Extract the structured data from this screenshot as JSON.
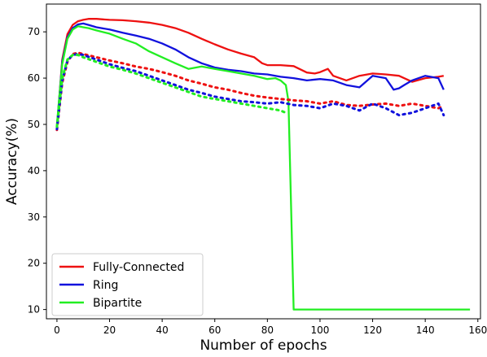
{
  "chart_data": {
    "type": "line",
    "title": "",
    "xlabel": "Number of epochs",
    "ylabel": "Accuracy(%)",
    "xlim": [
      -4,
      161
    ],
    "ylim": [
      8,
      76
    ],
    "xticks": [
      0,
      20,
      40,
      60,
      80,
      100,
      120,
      140,
      160
    ],
    "yticks": [
      10,
      20,
      30,
      40,
      50,
      60,
      70
    ],
    "grid": false,
    "legend": "lower-left",
    "series": [
      {
        "name": "Fully-Connected",
        "color": "#ee1111",
        "style": "solid",
        "x": [
          0,
          2,
          4,
          6,
          8,
          10,
          12,
          15,
          20,
          25,
          30,
          35,
          40,
          45,
          50,
          55,
          60,
          65,
          70,
          75,
          78,
          80,
          85,
          90,
          95,
          98,
          100,
          103,
          105,
          110,
          115,
          120,
          125,
          130,
          135,
          140,
          145,
          147
        ],
        "y": [
          49,
          64,
          69.5,
          71.5,
          72.3,
          72.6,
          72.8,
          72.8,
          72.6,
          72.5,
          72.3,
          72,
          71.5,
          70.8,
          69.8,
          68.5,
          67.3,
          66.2,
          65.3,
          64.5,
          63.2,
          62.8,
          62.8,
          62.6,
          61.2,
          61,
          61.3,
          62,
          60.5,
          59.5,
          60.5,
          61,
          60.8,
          60.5,
          59.2,
          60,
          60.3,
          60.5
        ]
      },
      {
        "name": "Ring",
        "color": "#1111dd",
        "style": "solid",
        "x": [
          0,
          2,
          4,
          6,
          8,
          10,
          12,
          15,
          20,
          25,
          30,
          35,
          40,
          45,
          50,
          55,
          60,
          65,
          70,
          75,
          80,
          85,
          90,
          95,
          100,
          105,
          110,
          115,
          120,
          125,
          128,
          130,
          132,
          135,
          140,
          145,
          147
        ],
        "y": [
          49.5,
          63.5,
          68.8,
          70.8,
          71.6,
          71.8,
          71.5,
          71,
          70.5,
          69.8,
          69.2,
          68.5,
          67.5,
          66.2,
          64.5,
          63.2,
          62.3,
          61.8,
          61.5,
          61,
          60.8,
          60.3,
          60,
          59.5,
          59.8,
          59.5,
          58.5,
          58,
          60.5,
          60,
          57.5,
          57.8,
          58.5,
          59.5,
          60.5,
          60,
          57.5
        ]
      },
      {
        "name": "Bipartite",
        "color": "#22ee22",
        "style": "solid",
        "x": [
          0,
          2,
          4,
          6,
          8,
          10,
          12,
          15,
          20,
          25,
          30,
          35,
          40,
          45,
          50,
          55,
          60,
          65,
          70,
          75,
          80,
          83,
          85,
          87,
          88,
          90,
          157
        ],
        "y": [
          50,
          63,
          68.5,
          70.5,
          71.2,
          71,
          70.8,
          70.3,
          69.6,
          68.5,
          67.5,
          65.8,
          64.5,
          63.2,
          62,
          62.5,
          62,
          61.5,
          61,
          60.5,
          59.8,
          60,
          59.5,
          58.5,
          55,
          10,
          10
        ]
      },
      {
        "color": "#ee1111",
        "style": "dotted",
        "x": [
          0,
          2,
          4,
          6,
          8,
          10,
          15,
          20,
          25,
          30,
          35,
          40,
          45,
          50,
          55,
          60,
          65,
          70,
          75,
          80,
          85,
          90,
          95,
          100,
          105,
          110,
          115,
          120,
          125,
          130,
          135,
          140,
          145,
          147
        ],
        "y": [
          48.8,
          59,
          63.5,
          65.2,
          65.5,
          65.2,
          64.5,
          63.8,
          63.2,
          62.5,
          62,
          61.3,
          60.5,
          59.5,
          58.8,
          58,
          57.5,
          56.8,
          56.2,
          55.8,
          55.5,
          55.2,
          55,
          54.5,
          55,
          54.2,
          54,
          54.3,
          54.5,
          54,
          54.5,
          54,
          53.5,
          54
        ]
      },
      {
        "color": "#1111dd",
        "style": "dotted",
        "x": [
          0,
          2,
          4,
          6,
          8,
          10,
          15,
          20,
          25,
          30,
          35,
          40,
          45,
          50,
          55,
          60,
          65,
          70,
          75,
          80,
          85,
          90,
          95,
          100,
          105,
          110,
          115,
          120,
          125,
          130,
          135,
          140,
          145,
          147
        ],
        "y": [
          49,
          59.5,
          63.8,
          65,
          65.2,
          65,
          64,
          63,
          62.2,
          61.5,
          60.5,
          59.5,
          58.5,
          57.5,
          56.8,
          56,
          55.5,
          55,
          54.8,
          54.5,
          54.8,
          54.2,
          54,
          53.5,
          54.5,
          54,
          53,
          54.5,
          53.5,
          52,
          52.5,
          53.5,
          54.5,
          52
        ]
      },
      {
        "color": "#22ee22",
        "style": "dotted",
        "x": [
          0,
          2,
          4,
          6,
          8,
          10,
          15,
          20,
          25,
          30,
          35,
          40,
          45,
          50,
          55,
          60,
          65,
          70,
          75,
          80,
          85,
          87
        ],
        "y": [
          49.5,
          60,
          64,
          65,
          65,
          64.5,
          63.5,
          62.5,
          61.8,
          61,
          60,
          59,
          58,
          57,
          56,
          55.5,
          55,
          54.5,
          54,
          53.5,
          53,
          52.5
        ]
      }
    ]
  }
}
